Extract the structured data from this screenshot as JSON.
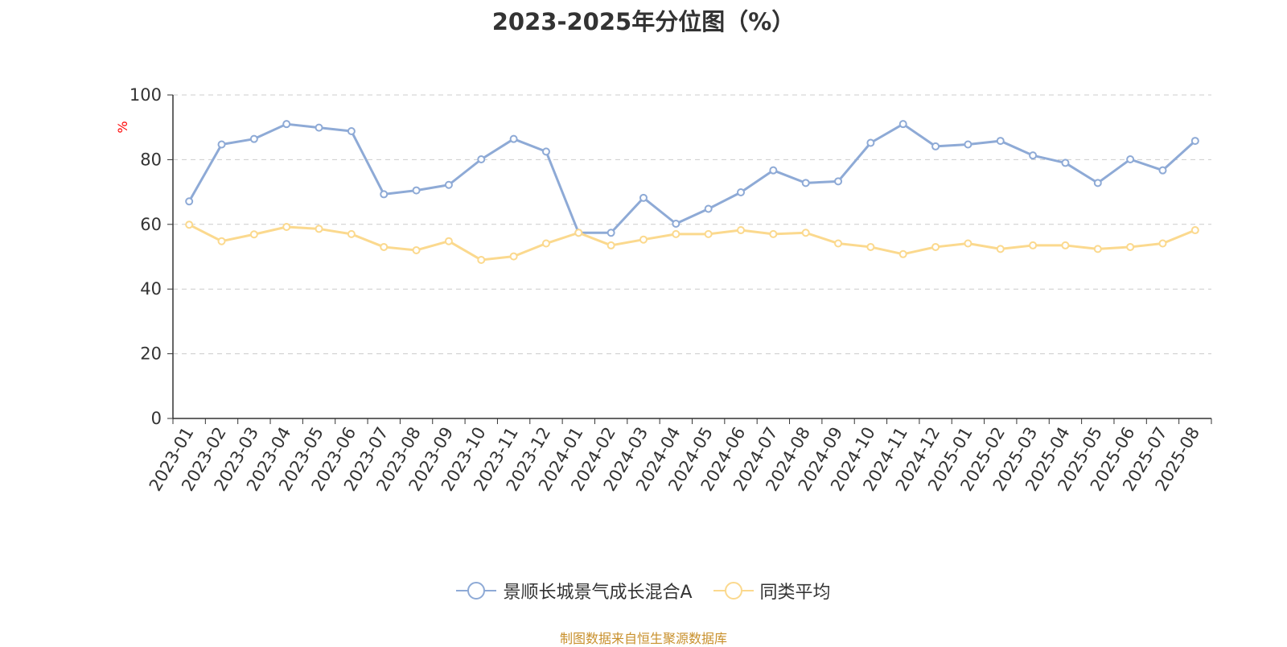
{
  "colors": {
    "fund": "#8eaad6",
    "peer": "#fbd98e",
    "axis": "#333333",
    "grid": "#cccccc",
    "unit": "#ff0000",
    "source": "#c8902c"
  },
  "chart_data": {
    "type": "line",
    "title": "2023-2025年分位图（%）",
    "ylabel": "%",
    "xlabel": "",
    "ylim": [
      0,
      100
    ],
    "yticks": [
      0,
      20,
      40,
      60,
      80,
      100
    ],
    "grid": true,
    "legend_position": "bottom",
    "categories": [
      "2023-01",
      "2023-02",
      "2023-03",
      "2023-04",
      "2023-05",
      "2023-06",
      "2023-07",
      "2023-08",
      "2023-09",
      "2023-10",
      "2023-11",
      "2023-12",
      "2024-01",
      "2024-02",
      "2024-03",
      "2024-04",
      "2024-05",
      "2024-06",
      "2024-07",
      "2024-08",
      "2024-09",
      "2024-10",
      "2024-11",
      "2024-12",
      "2025-01",
      "2025-02",
      "2025-03",
      "2025-04",
      "2025-05",
      "2025-06",
      "2025-07",
      "2025-08"
    ],
    "series": [
      {
        "name": "景顺长城景气成长混合A",
        "color": "#8eaad6",
        "values": [
          67.1,
          84.7,
          86.4,
          91.0,
          89.9,
          88.8,
          69.3,
          70.5,
          72.2,
          80.1,
          86.4,
          82.5,
          57.4,
          57.4,
          68.2,
          60.2,
          64.8,
          69.9,
          76.7,
          72.8,
          73.3,
          85.2,
          91.0,
          84.1,
          84.7,
          85.8,
          81.3,
          79.0,
          72.8,
          80.1,
          76.7,
          85.8
        ]
      },
      {
        "name": "同类平均",
        "color": "#fbd98e",
        "values": [
          59.9,
          54.8,
          56.9,
          59.2,
          58.6,
          57.0,
          53.0,
          52.0,
          54.8,
          49.0,
          50.1,
          54.1,
          57.4,
          53.5,
          55.3,
          57.0,
          57.0,
          58.2,
          57.0,
          57.4,
          54.1,
          53.0,
          50.8,
          53.0,
          54.1,
          52.4,
          53.5,
          53.5,
          52.4,
          53.0,
          54.1,
          58.2
        ]
      }
    ]
  },
  "footer": {
    "source": "制图数据来自恒生聚源数据库"
  }
}
